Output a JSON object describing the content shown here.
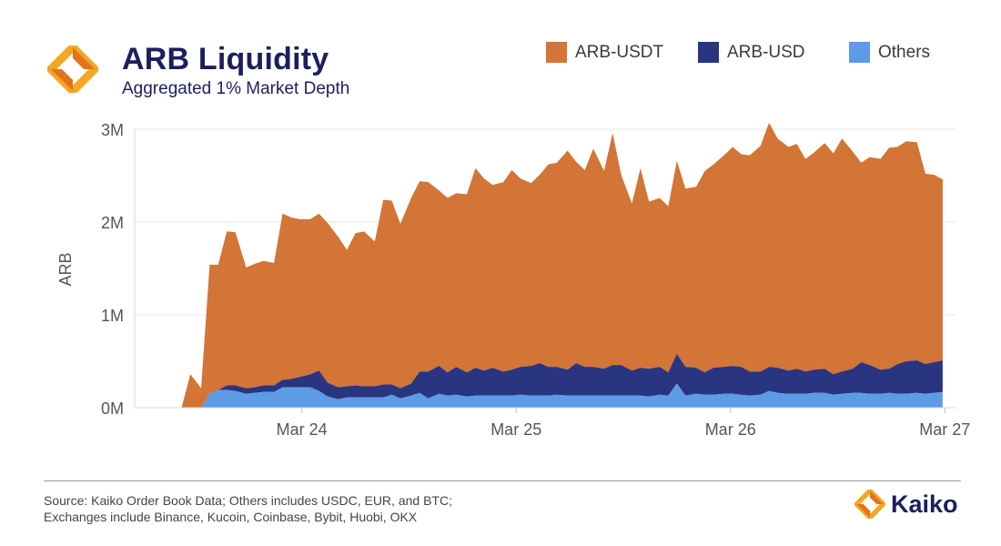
{
  "header": {
    "title": "ARB Liquidity",
    "subtitle": "Aggregated 1% Market Depth",
    "logo_icon": "kaiko-diamond-icon"
  },
  "footer": {
    "source_line_1": "Source: Kaiko Order Book Data; Others includes USDC, EUR, and BTC;",
    "source_line_2": "Exchanges include Binance, Kucoin, Coinbase, Bybit, Huobi, OKX",
    "brand": "Kaiko"
  },
  "colors": {
    "ARB-USDT": "#d27536",
    "ARB-USD": "#293581",
    "Others": "#5c9be6",
    "logo_orange": "#f28c1c",
    "title_navy": "#1b1f5e"
  },
  "chart_data": {
    "type": "area",
    "stacked": true,
    "ylabel": "ARB",
    "xlabel": "",
    "ylim": [
      0,
      3000000
    ],
    "yticks": [
      0,
      1000000,
      2000000,
      3000000
    ],
    "ytick_labels": [
      "0M",
      "1M",
      "2M",
      "3M"
    ],
    "xlim": [
      -0.78,
      3.05
    ],
    "xticks": [
      0,
      1,
      2,
      3
    ],
    "xtick_labels": [
      "Mar 24",
      "Mar 25",
      "Mar 26",
      "Mar 27"
    ],
    "x_unit": "days from Mar 24 00:00",
    "grid": true,
    "legend_position": "top-right",
    "x": [
      -0.56,
      -0.52,
      -0.47,
      -0.43,
      -0.39,
      -0.35,
      -0.31,
      -0.26,
      -0.22,
      -0.18,
      -0.13,
      -0.09,
      -0.05,
      -0.01,
      0.04,
      0.08,
      0.12,
      0.17,
      0.21,
      0.25,
      0.29,
      0.34,
      0.38,
      0.42,
      0.46,
      0.51,
      0.55,
      0.59,
      0.64,
      0.68,
      0.72,
      0.77,
      0.81,
      0.85,
      0.89,
      0.94,
      0.98,
      1.02,
      1.07,
      1.11,
      1.15,
      1.19,
      1.24,
      1.28,
      1.32,
      1.36,
      1.41,
      1.45,
      1.49,
      1.54,
      1.58,
      1.62,
      1.67,
      1.71,
      1.75,
      1.79,
      1.84,
      1.88,
      1.92,
      1.97,
      2.01,
      2.05,
      2.09,
      2.14,
      2.18,
      2.22,
      2.27,
      2.31,
      2.35,
      2.39,
      2.44,
      2.48,
      2.52,
      2.57,
      2.61,
      2.65,
      2.7,
      2.74,
      2.78,
      2.82,
      2.87,
      2.91,
      2.95,
      2.99
    ],
    "series": [
      {
        "name": "ARB-USDT",
        "values": [
          10000,
          360000,
          210000,
          1390000,
          1350000,
          1660000,
          1650000,
          1300000,
          1330000,
          1340000,
          1320000,
          1790000,
          1740000,
          1700000,
          1670000,
          1690000,
          1720000,
          1620000,
          1470000,
          1640000,
          1670000,
          1560000,
          1990000,
          1980000,
          1770000,
          2000000,
          2050000,
          2040000,
          1890000,
          1880000,
          1870000,
          1920000,
          2150000,
          2070000,
          1970000,
          2040000,
          2150000,
          2030000,
          1970000,
          2030000,
          2180000,
          2200000,
          2360000,
          2170000,
          2120000,
          2350000,
          2130000,
          2500000,
          2050000,
          1800000,
          2150000,
          1800000,
          1820000,
          1790000,
          2080000,
          1920000,
          1950000,
          2170000,
          2190000,
          2280000,
          2360000,
          2290000,
          2330000,
          2430000,
          2630000,
          2470000,
          2410000,
          2420000,
          2290000,
          2340000,
          2430000,
          2380000,
          2510000,
          2340000,
          2150000,
          2240000,
          2270000,
          2380000,
          2340000,
          2370000,
          2350000,
          2050000,
          2020000,
          1950000
        ]
      },
      {
        "name": "ARB-USD",
        "values": [
          0,
          0,
          0,
          0,
          0,
          50000,
          60000,
          60000,
          60000,
          70000,
          70000,
          80000,
          90000,
          110000,
          140000,
          220000,
          150000,
          130000,
          120000,
          130000,
          120000,
          120000,
          140000,
          110000,
          110000,
          130000,
          230000,
          290000,
          300000,
          250000,
          300000,
          260000,
          300000,
          270000,
          300000,
          260000,
          280000,
          300000,
          320000,
          350000,
          310000,
          300000,
          280000,
          350000,
          310000,
          310000,
          290000,
          330000,
          330000,
          270000,
          300000,
          300000,
          300000,
          250000,
          320000,
          310000,
          280000,
          240000,
          290000,
          290000,
          300000,
          300000,
          260000,
          250000,
          260000,
          270000,
          250000,
          270000,
          240000,
          250000,
          260000,
          220000,
          240000,
          260000,
          330000,
          310000,
          260000,
          260000,
          320000,
          350000,
          350000,
          320000,
          330000,
          340000
        ]
      },
      {
        "name": "Others",
        "values": [
          0,
          0,
          0,
          150000,
          190000,
          190000,
          180000,
          150000,
          160000,
          170000,
          170000,
          220000,
          220000,
          220000,
          220000,
          180000,
          120000,
          90000,
          110000,
          110000,
          110000,
          110000,
          110000,
          140000,
          100000,
          130000,
          160000,
          100000,
          150000,
          130000,
          140000,
          120000,
          130000,
          130000,
          130000,
          130000,
          130000,
          140000,
          130000,
          130000,
          130000,
          140000,
          130000,
          130000,
          130000,
          130000,
          130000,
          130000,
          130000,
          130000,
          130000,
          120000,
          140000,
          130000,
          260000,
          130000,
          150000,
          140000,
          140000,
          150000,
          150000,
          140000,
          130000,
          140000,
          180000,
          160000,
          150000,
          150000,
          150000,
          160000,
          160000,
          140000,
          150000,
          160000,
          160000,
          150000,
          150000,
          160000,
          150000,
          150000,
          160000,
          150000,
          160000,
          170000
        ]
      }
    ]
  }
}
